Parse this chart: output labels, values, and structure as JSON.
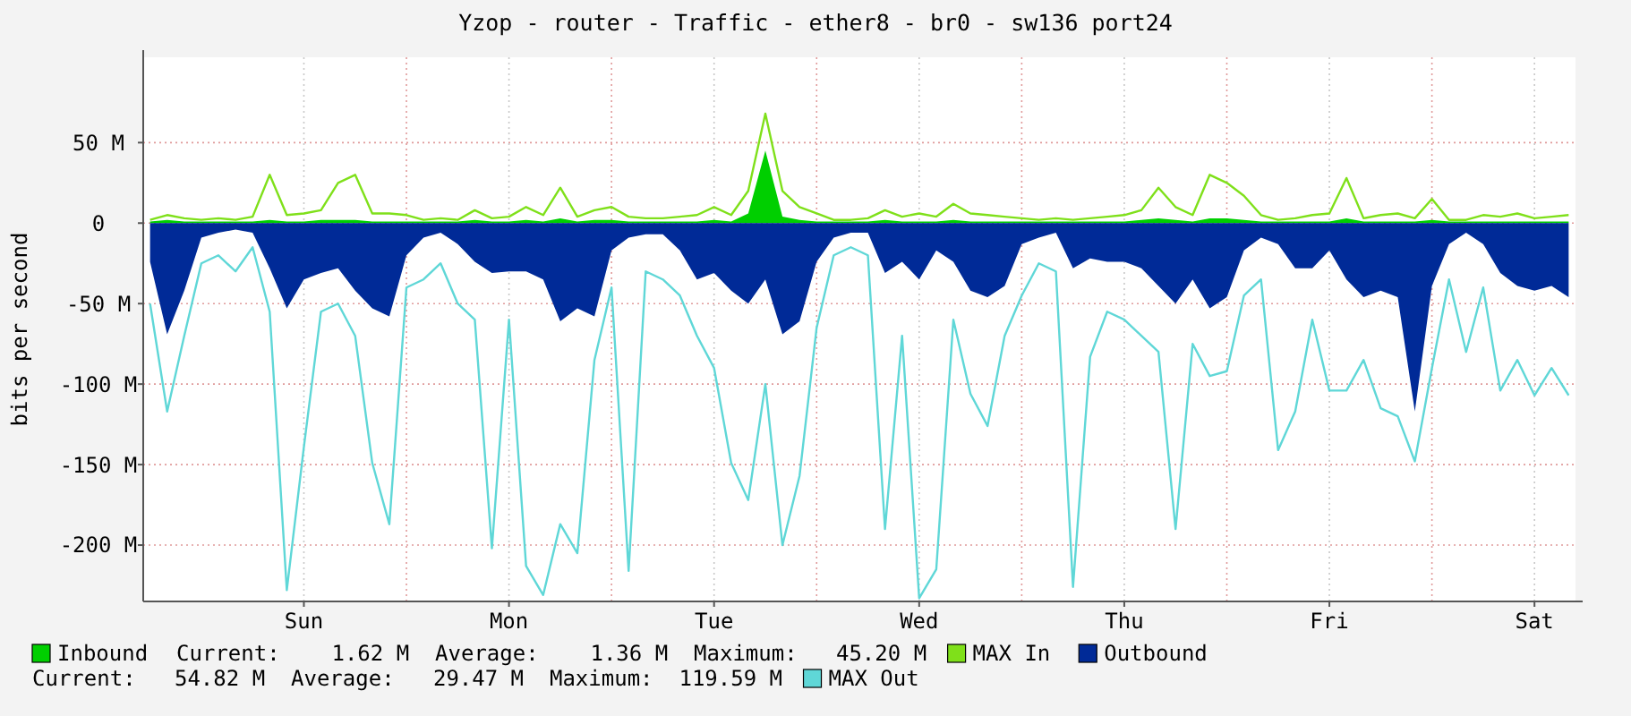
{
  "chart_data": {
    "type": "area",
    "title": "Yzop - router - Traffic - ether8 - br0 - sw136 port24",
    "ylabel": "bits per second",
    "categories": [
      null,
      null,
      null,
      null,
      null,
      null,
      null,
      null,
      null,
      "Sun",
      null,
      null,
      null,
      null,
      null,
      null,
      null,
      null,
      null,
      null,
      null,
      "Mon",
      null,
      null,
      null,
      null,
      null,
      null,
      null,
      null,
      null,
      null,
      null,
      "Tue",
      null,
      null,
      null,
      null,
      null,
      null,
      null,
      null,
      null,
      null,
      null,
      "Wed",
      null,
      null,
      null,
      null,
      null,
      null,
      null,
      null,
      null,
      null,
      null,
      "Thu",
      null,
      null,
      null,
      null,
      null,
      null,
      null,
      null,
      null,
      null,
      null,
      "Fri",
      null,
      null,
      null,
      null,
      null,
      null,
      null,
      null,
      null,
      null,
      null,
      "Sat",
      null,
      null
    ],
    "ylim": [
      -235,
      103
    ],
    "yticks": [
      {
        "value": 50,
        "label": "50 M"
      },
      0,
      {
        "value": -50,
        "label": "-50 M"
      },
      {
        "value": -100,
        "label": "-100 M"
      },
      {
        "value": -150,
        "label": "-150 M"
      },
      {
        "value": -200,
        "label": "-200 M"
      }
    ],
    "grid": true,
    "legend": "bottom",
    "series": [
      {
        "name": "Inbound",
        "color": "#00cf00",
        "values": [
          1,
          2,
          1,
          1,
          1,
          1,
          1,
          2,
          1,
          1,
          2,
          2,
          2,
          1,
          1,
          1,
          1,
          1,
          1,
          2,
          1,
          1,
          2,
          1,
          3,
          1,
          2,
          2,
          1,
          1,
          1,
          1,
          1,
          2,
          1,
          6,
          45,
          4,
          2,
          1,
          1,
          1,
          1,
          2,
          1,
          1,
          1,
          2,
          1,
          1,
          1,
          1,
          1,
          1,
          1,
          1,
          1,
          1,
          2,
          3,
          2,
          1,
          3,
          3,
          2,
          1,
          1,
          1,
          1,
          1,
          3,
          1,
          1,
          1,
          1,
          2,
          1,
          1,
          1,
          1,
          1,
          1,
          1,
          1
        ]
      },
      {
        "name": "MAX In",
        "type": "line",
        "color": "#7fe01a",
        "values": [
          2,
          5,
          3,
          2,
          3,
          2,
          4,
          30,
          5,
          6,
          8,
          25,
          30,
          6,
          6,
          5,
          2,
          3,
          2,
          8,
          3,
          4,
          10,
          5,
          22,
          4,
          8,
          10,
          4,
          3,
          3,
          4,
          5,
          10,
          5,
          20,
          68,
          20,
          10,
          6,
          2,
          2,
          3,
          8,
          4,
          6,
          4,
          12,
          6,
          5,
          4,
          3,
          2,
          3,
          2,
          3,
          4,
          5,
          8,
          22,
          10,
          5,
          30,
          25,
          17,
          5,
          2,
          3,
          5,
          6,
          28,
          3,
          5,
          6,
          3,
          15,
          2,
          2,
          5,
          4,
          6,
          3,
          4,
          5
        ]
      },
      {
        "name": "Outbound",
        "color": "#002a97",
        "values": [
          -24,
          -69,
          -42,
          -9,
          -6,
          -4,
          -6,
          -28,
          -53,
          -35,
          -31,
          -28,
          -42,
          -53,
          -58,
          -20,
          -9,
          -6,
          -13,
          -24,
          -31,
          -30,
          -30,
          -35,
          -61,
          -53,
          -58,
          -17,
          -9,
          -7,
          -7,
          -17,
          -35,
          -31,
          -42,
          -50,
          -35,
          -69,
          -61,
          -24,
          -9,
          -6,
          -6,
          -31,
          -24,
          -35,
          -17,
          -24,
          -42,
          -46,
          -39,
          -13,
          -9,
          -6,
          -28,
          -22,
          -24,
          -24,
          -28,
          -39,
          -50,
          -35,
          -53,
          -46,
          -17,
          -9,
          -13,
          -28,
          -28,
          -17,
          -35,
          -46,
          -42,
          -46,
          -117,
          -39,
          -13,
          -6,
          -13,
          -31,
          -39,
          -42,
          -39,
          -46
        ]
      },
      {
        "name": "MAX Out",
        "type": "line",
        "color": "#5fd7d7",
        "values": [
          -50,
          -117,
          -70,
          -25,
          -20,
          -30,
          -15,
          -55,
          -228,
          -139,
          -55,
          -50,
          -70,
          -149,
          -187,
          -40,
          -35,
          -25,
          -50,
          -60,
          -202,
          -60,
          -213,
          -231,
          -187,
          -205,
          -85,
          -40,
          -216,
          -30,
          -35,
          -45,
          -70,
          -90,
          -149,
          -172,
          -100,
          -200,
          -157,
          -65,
          -20,
          -15,
          -20,
          -190,
          -70,
          -233,
          -215,
          -60,
          -106,
          -126,
          -70,
          -45,
          -25,
          -30,
          -226,
          -83,
          -55,
          -60,
          -70,
          -80,
          -190,
          -75,
          -95,
          -92,
          -45,
          -35,
          -141,
          -117,
          -60,
          -104,
          -104,
          -85,
          -115,
          -120,
          -148,
          -90,
          -35,
          -80,
          -40,
          -104,
          -85,
          -107,
          -90,
          -107
        ]
      }
    ],
    "annotations": [
      "Current:    1.62 M  Average:    1.36 M  Maximum:   45.20 M",
      "Current:   54.82 M  Average:   29.47 M  Maximum:  119.59 M"
    ]
  }
}
